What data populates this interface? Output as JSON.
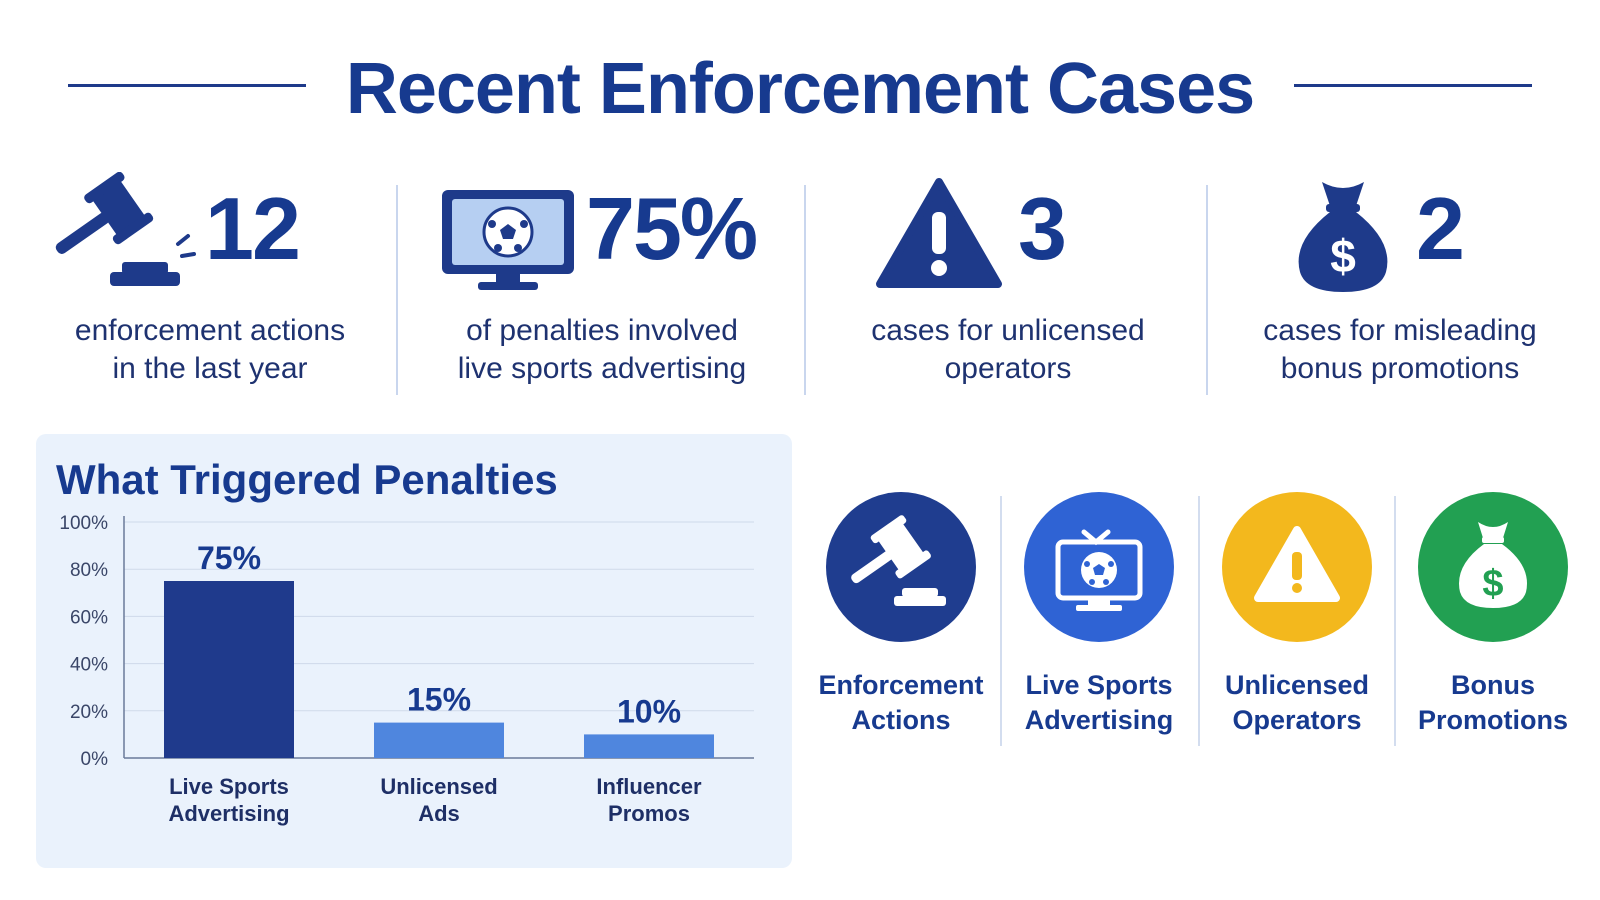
{
  "title": "Recent Enforcement Cases",
  "stats": [
    {
      "value": "12",
      "text_line1": "enforcement actions",
      "text_line2": "in the last year",
      "icon": "gavel-icon"
    },
    {
      "value": "75%",
      "text_line1": "of penalties involved",
      "text_line2": "live sports advertising",
      "icon": "monitor-soccer-icon"
    },
    {
      "value": "3",
      "text_line1": "cases for unlicensed",
      "text_line2": "operators",
      "icon": "warning-icon"
    },
    {
      "value": "2",
      "text_line1": "cases for misleading",
      "text_line2": "bonus promotions",
      "icon": "money-bag-icon"
    }
  ],
  "chart_data": {
    "type": "bar",
    "title": "What Triggered Penalties",
    "categories": [
      [
        "Live Sports",
        "Advertising"
      ],
      [
        "Unlicensed",
        "Ads"
      ],
      [
        "Influencer",
        "Promos"
      ]
    ],
    "values": [
      75,
      15,
      10
    ],
    "value_labels": [
      "75%",
      "15%",
      "10%"
    ],
    "ylim": [
      0,
      100
    ],
    "yticks": [
      "0%",
      "20%",
      "40%",
      "60%",
      "80%",
      "100%"
    ],
    "grid": true,
    "colors": [
      "#1f3a8c",
      "#4f86de",
      "#4f86de"
    ]
  },
  "categories": [
    {
      "line1": "Enforcement",
      "line2": "Actions",
      "icon": "gavel-icon",
      "color": "#1f3d8f"
    },
    {
      "line1": "Live Sports",
      "line2": "Advertising",
      "icon": "tv-soccer-icon",
      "color": "#2f63d4"
    },
    {
      "line1": "Unlicensed",
      "line2": "Operators",
      "icon": "warning-icon",
      "color": "#f3b81d"
    },
    {
      "line1": "Bonus",
      "line2": "Promotions",
      "icon": "money-bag-icon",
      "color": "#22a052"
    }
  ]
}
